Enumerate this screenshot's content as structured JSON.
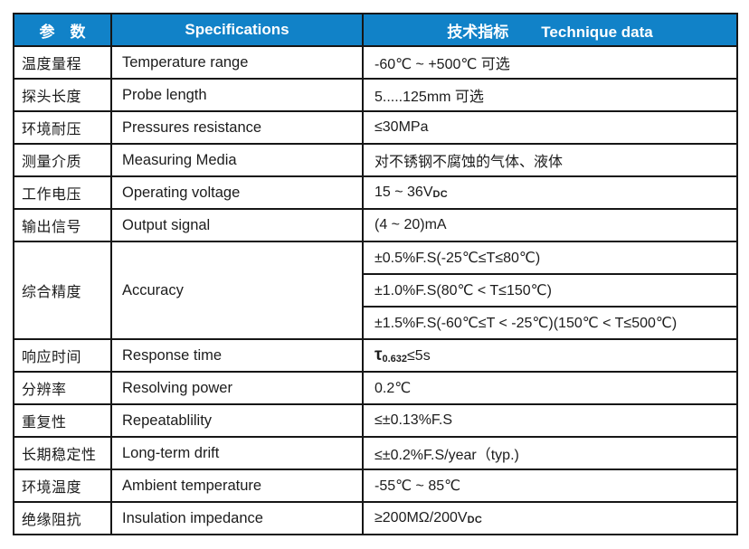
{
  "accent_color": "#1182c8",
  "border_color": "#161616",
  "header": {
    "param_cn": "参　数",
    "spec_en": "Specifications",
    "tech_cn": "技术指标",
    "tech_en": "Technique data"
  },
  "rows": [
    {
      "id": "temperature-range",
      "cn": "温度量程",
      "en": "Temperature range",
      "value": "-60℃ ~ +500℃ 可选"
    },
    {
      "id": "probe-length",
      "cn": "探头长度",
      "en": "Probe length",
      "value": "5.....125mm 可选"
    },
    {
      "id": "pressures-resistance",
      "cn": "环境耐压",
      "en": "Pressures resistance",
      "value": "≤30MPa"
    },
    {
      "id": "measuring-media",
      "cn": "测量介质",
      "en": "Measuring Media",
      "value": "对不锈钢不腐蚀的气体、液体"
    },
    {
      "id": "operating-voltage",
      "cn": "工作电压",
      "en": "Operating voltage",
      "value_main": "15 ~ 36V",
      "value_sub": "DC"
    },
    {
      "id": "output-signal",
      "cn": "输出信号",
      "en": "Output signal",
      "value": "(4 ~ 20)mA"
    },
    {
      "id": "accuracy",
      "cn": "综合精度",
      "en": "Accuracy",
      "values": [
        "±0.5%F.S(-25℃≤T≤80℃)",
        "±1.0%F.S(80℃ < T≤150℃)",
        "±1.5%F.S(-60℃≤T < -25℃)(150℃ < T≤500℃)"
      ]
    },
    {
      "id": "response-time",
      "cn": "响应时间",
      "en": "Response time",
      "value_tau": "τ",
      "value_tau_sub": "0.632",
      "value_rest": "≤5s"
    },
    {
      "id": "resolving-power",
      "cn": "分辨率",
      "en": "Resolving power",
      "value": "0.2℃"
    },
    {
      "id": "repeatability",
      "cn": "重复性",
      "en": "Repeatablility",
      "value": "≤±0.13%F.S"
    },
    {
      "id": "long-term-drift",
      "cn": "长期稳定性",
      "en": "Long-term drift",
      "value": "≤±0.2%F.S/year（typ.)"
    },
    {
      "id": "ambient-temperature",
      "cn": "环境温度",
      "en": "Ambient temperature",
      "value": "-55℃ ~ 85℃"
    },
    {
      "id": "insulation-impedance",
      "cn": "绝缘阻抗",
      "en": "Insulation impedance",
      "value_main": "≥200MΩ/200V",
      "value_sub": "DC"
    }
  ]
}
